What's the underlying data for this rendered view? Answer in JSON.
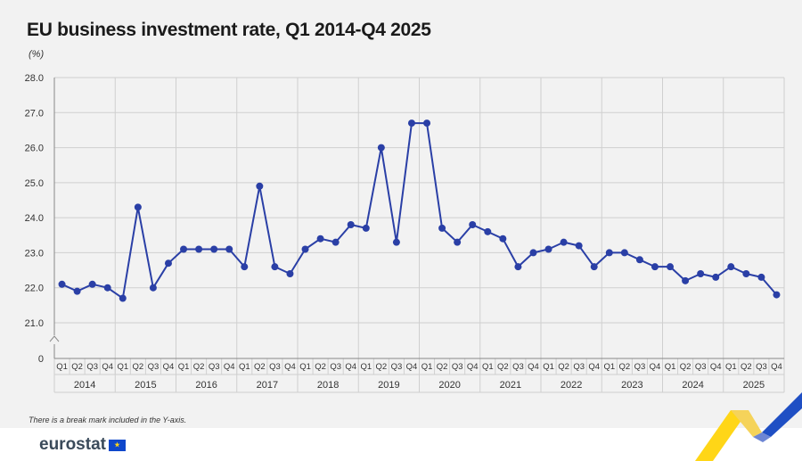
{
  "title": "EU business investment rate, Q1 2014-Q4 2025",
  "unit": "(%)",
  "footnote": "There is a break mark included in the Y-axis.",
  "logo": {
    "text": "eurostat",
    "icon": "eu-flag-icon"
  },
  "colors": {
    "line": "#2a3fa6",
    "grid": "#cfcfcf",
    "axis": "#888888",
    "text": "#333333"
  },
  "chart_data": {
    "type": "line",
    "title": "EU business investment rate, Q1 2014-Q4 2025",
    "ylabel": "(%)",
    "ylim": [
      21,
      28
    ],
    "y_ticks": [
      "28.0",
      "27.0",
      "26.0",
      "25.0",
      "24.0",
      "23.0",
      "22.0",
      "21.0",
      "0"
    ],
    "y_axis_break": true,
    "grid": true,
    "quarters": [
      "Q1",
      "Q2",
      "Q3",
      "Q4"
    ],
    "years": [
      "2014",
      "2015",
      "2016",
      "2017",
      "2018",
      "2019",
      "2020",
      "2021",
      "2022",
      "2023",
      "2024",
      "2025"
    ],
    "series": [
      {
        "values": [
          22.1,
          21.9,
          22.1,
          22.0,
          21.7,
          24.3,
          22.0,
          22.7,
          23.1,
          23.1,
          23.1,
          23.1,
          22.6,
          24.9,
          22.6,
          22.4,
          23.1,
          23.4,
          23.3,
          23.8,
          23.7,
          26.0,
          23.3,
          26.7,
          26.7,
          23.7,
          23.3,
          23.8,
          23.6,
          23.4,
          22.6,
          23.0,
          23.1,
          23.3,
          23.2,
          22.6,
          23.0,
          23.0,
          22.8,
          22.6,
          22.6,
          22.2,
          22.4,
          22.3,
          22.6,
          22.4,
          22.3,
          21.8
        ]
      }
    ]
  }
}
